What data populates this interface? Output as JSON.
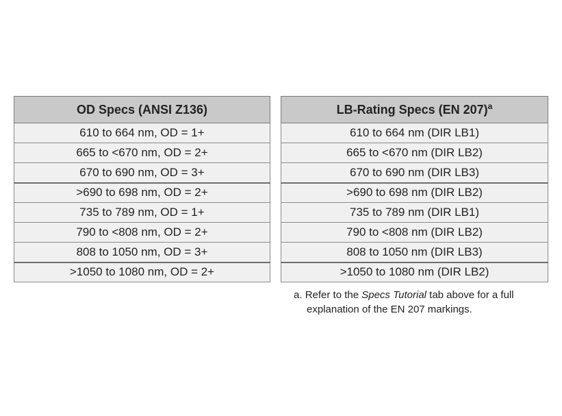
{
  "od_table": {
    "header": "OD Specs (ANSI Z136)",
    "rows": [
      "610 to 664 nm, OD = 1+",
      "665 to <670 nm, OD = 2+",
      "670 to 690 nm, OD = 3+",
      ">690 to 698 nm, OD = 2+",
      "735 to 789 nm, OD = 1+",
      "790 to <808 nm, OD = 2+",
      "808 to 1050 nm, OD = 3+",
      ">1050 to 1080 nm, OD = 2+"
    ]
  },
  "lb_table": {
    "header": "LB-Rating Specs (EN 207)",
    "header_sup": "a",
    "rows": [
      "610 to 664 nm (DIR LB1)",
      "665 to <670 nm (DIR LB2)",
      "670 to 690 nm (DIR LB3)",
      ">690 to 698 nm (DIR LB2)",
      "735 to 789 nm (DIR LB1)",
      "790 to <808 nm (DIR LB2)",
      "808 to 1050 nm (DIR LB3)",
      ">1050 to 1080 nm (DIR LB2)"
    ]
  },
  "footnote": {
    "marker": "a.",
    "text_before": "Refer to the ",
    "emphasis": "Specs Tutorial",
    "text_after": " tab above for a full",
    "line2": "explanation of the EN 207 markings."
  },
  "colors": {
    "header_bg": "#c9c9c9",
    "cell_bg": "#f0f0f0",
    "border": "#8a8a8a",
    "text": "#222222"
  }
}
